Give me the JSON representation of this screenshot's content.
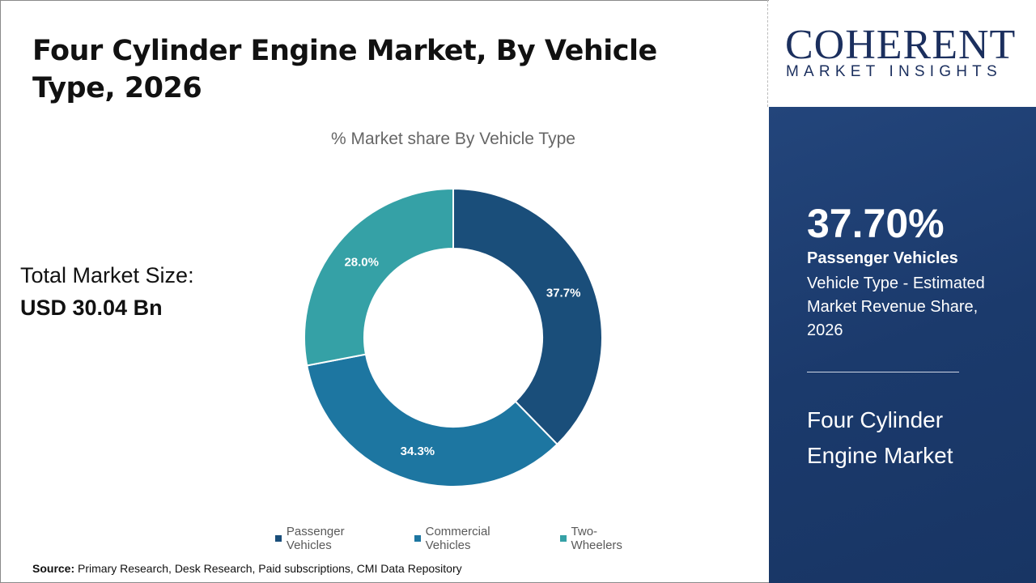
{
  "title": "Four Cylinder Engine Market, By Vehicle Type, 2026",
  "total_market": {
    "label": "Total Market Size:",
    "value": "USD 30.04 Bn"
  },
  "source": {
    "label": "Source:",
    "text": " Primary Research, Desk Research, Paid subscriptions, CMI Data Repository"
  },
  "logo": {
    "main": "COHERENT",
    "sub": "MARKET INSIGHTS"
  },
  "highlight": {
    "value": "37.70%",
    "segment": "Passenger Vehicles",
    "description": "Vehicle Type - Estimated Market Revenue Share, 2026",
    "market": "Four Cylinder Engine Market"
  },
  "chart_data": {
    "type": "pie",
    "donut": true,
    "title": "% Market share By Vehicle Type",
    "categories": [
      "Passenger Vehicles",
      "Commercial Vehicles",
      "Two-Wheelers"
    ],
    "values": [
      37.7,
      34.3,
      28.0
    ],
    "labels": [
      "37.7%",
      "34.3%",
      "28.0%"
    ],
    "colors": [
      "#1a4e7a",
      "#1d76a1",
      "#35a1a6"
    ],
    "legend": "bottom"
  }
}
